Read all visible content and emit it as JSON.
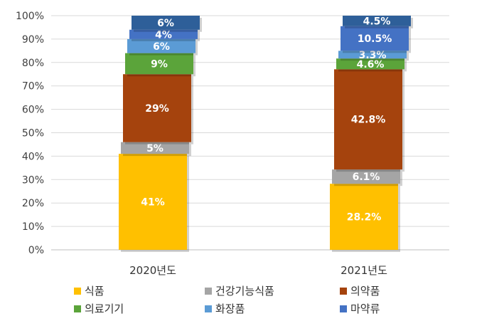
{
  "chart_data": {
    "type": "bar",
    "stacking": "waterfall-100-percent",
    "categories": [
      "2020년도",
      "2021년도"
    ],
    "ylim": [
      0,
      100
    ],
    "y_ticks": [
      "0%",
      "10%",
      "20%",
      "30%",
      "40%",
      "50%",
      "60%",
      "70%",
      "80%",
      "90%",
      "100%"
    ],
    "grid": true,
    "legend_position": "bottom",
    "series": [
      {
        "name": "식품",
        "color": "#FFC000",
        "values": [
          41,
          28.2
        ],
        "labels": [
          "41%",
          "28.2%"
        ]
      },
      {
        "name": "건강기능식품",
        "color": "#A5A5A5",
        "values": [
          5,
          6.1
        ],
        "labels": [
          "5%",
          "6.1%"
        ]
      },
      {
        "name": "의약품",
        "color": "#A5430D",
        "values": [
          29,
          42.8
        ],
        "labels": [
          "29%",
          "42.8%"
        ]
      },
      {
        "name": "의료기기",
        "color": "#5BA43A",
        "values": [
          9,
          4.6
        ],
        "labels": [
          "9%",
          "4.6%"
        ]
      },
      {
        "name": "화장품",
        "color": "#5B9BD5",
        "values": [
          6,
          3.3
        ],
        "labels": [
          "6%",
          "3.3%"
        ]
      },
      {
        "name": "마약류",
        "color": "#4472C4",
        "values": [
          4,
          10.5
        ],
        "labels": [
          "4%",
          "10.5%"
        ]
      },
      {
        "name": "",
        "color": "#2E5F99",
        "values": [
          6,
          4.5
        ],
        "labels": [
          "6%",
          "4.5%"
        ]
      }
    ]
  }
}
